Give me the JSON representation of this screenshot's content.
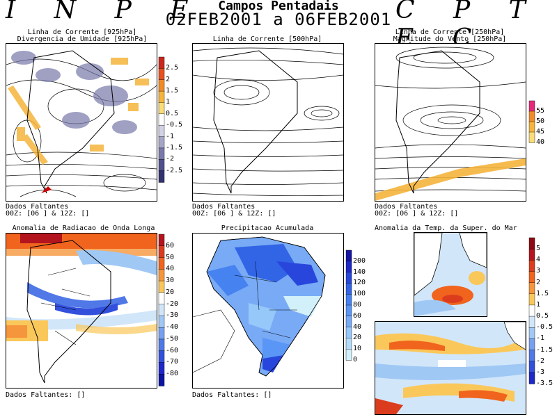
{
  "header": {
    "left_logo": "I N P E",
    "right_logo": "C P T E C",
    "title": "Campos Pentadais",
    "dates": "02FEB2001 a 06FEB2001"
  },
  "panels": {
    "p1": {
      "title_line1": "Linha de Corrente [925hPa]",
      "title_line2": "Divergencia de Umidade [925hPa]",
      "footer_line1": "Dados Faltantes",
      "footer_line2": "00Z: [06 ] & 12Z: []"
    },
    "p2": {
      "title_line1": "Linha de Corrente [500hPa]",
      "footer_line1": "Dados Faltantes",
      "footer_line2": "00Z: [06 ] & 12Z: []"
    },
    "p3": {
      "title_line1": "Linha de Corrente [250hPa]",
      "title_line2": "Magnitude do Vento [250hPa]",
      "footer_line1": "Dados Faltantes",
      "footer_line2": "00Z: [06 ] & 12Z: []"
    },
    "p4": {
      "title_line1": "Anomalia de Radiacao de Onda Longa",
      "footer_line1": "Dados Faltantes: []"
    },
    "p5": {
      "title_line1": "Precipitacao Acumulada",
      "footer_line1": "Dados Faltantes: []"
    },
    "p6": {
      "title_line1": "Anomalia da Temp. da Super. do Mar"
    }
  },
  "colorbars": {
    "cb1": {
      "labels": [
        "2.5",
        "2",
        "1.5",
        "1",
        "0.5",
        "-0.5",
        "-1",
        "-1.5",
        "-2",
        "-2.5"
      ],
      "colors": [
        "#c8281e",
        "#e6501e",
        "#f08c28",
        "#f5b43c",
        "#fadc78",
        "#ffffff",
        "#d2d2e6",
        "#a5a5c8",
        "#7878aa",
        "#50508c",
        "#32326e"
      ]
    },
    "cb3": {
      "labels": [
        "55",
        "50",
        "45",
        "40"
      ],
      "colors": [
        "#e6287a",
        "#f08c28",
        "#f5b43c",
        "#fadc78"
      ]
    },
    "cb4": {
      "labels": [
        "60",
        "50",
        "40",
        "30",
        "20",
        "-20",
        "-30",
        "-40",
        "-50",
        "-60",
        "-70",
        "-80"
      ],
      "colors": [
        "#b4141e",
        "#dc3c1e",
        "#f0641e",
        "#f5963c",
        "#fac85a",
        "#ffffff",
        "#d2e6fa",
        "#a0c8f5",
        "#78a0f0",
        "#5078e6",
        "#3250dc",
        "#1e28c8",
        "#0a14a0"
      ]
    },
    "cb5": {
      "labels": [
        "200",
        "140",
        "120",
        "100",
        "80",
        "60",
        "40",
        "20",
        "10",
        "0"
      ],
      "colors": [
        "#1414a0",
        "#1e28c8",
        "#2846dc",
        "#3264e6",
        "#4682f0",
        "#5a96f5",
        "#78aaf5",
        "#96c8fa",
        "#b4dcfa",
        "#d2f0fa"
      ]
    },
    "cb6": {
      "labels": [
        "5",
        "4",
        "3",
        "2",
        "1.5",
        "1",
        "0.5",
        "-0.5",
        "-1",
        "-1.5",
        "-2",
        "-3",
        "-3.5"
      ],
      "colors": [
        "#8c0a14",
        "#b4141e",
        "#dc3c1e",
        "#f0641e",
        "#f5963c",
        "#fac85a",
        "#ffffff",
        "#d2e6fa",
        "#a0c8f5",
        "#78a0f0",
        "#5078e6",
        "#3250dc",
        "#1e28c8"
      ]
    }
  }
}
